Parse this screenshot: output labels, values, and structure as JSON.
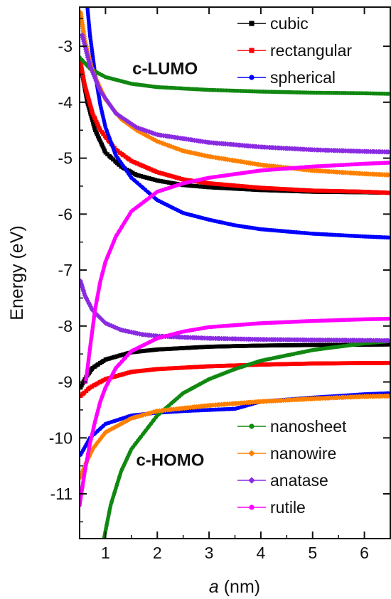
{
  "chart_data": {
    "type": "scatter",
    "xlabel_italic": "a",
    "xlabel_rest": " (nm)",
    "ylabel": "Energy (eV)",
    "xlim": [
      0.5,
      6.5
    ],
    "ylim": [
      -11.8,
      -2.3
    ],
    "xticks": [
      1,
      2,
      3,
      4,
      5,
      6
    ],
    "yticks": [
      -11,
      -10,
      -9,
      -8,
      -7,
      -6,
      -5,
      -4,
      -3
    ],
    "annotations": [
      {
        "text": "c-LUMO",
        "x": 2.15,
        "y": -3.5
      },
      {
        "text": "c-HOMO",
        "x": 2.25,
        "y": -10.5
      }
    ],
    "legend_top": [
      "cubic",
      "rectangular",
      "spherical"
    ],
    "legend_bottom": [
      "nanosheet",
      "nanowire",
      "anatase",
      "rutile"
    ],
    "series": [
      {
        "name": "cubic",
        "color": "#000000",
        "marker": "square",
        "group": "top",
        "points": [
          [
            0.55,
            -3.5
          ],
          [
            0.65,
            -4.0
          ],
          [
            0.8,
            -4.5
          ],
          [
            1.0,
            -4.9
          ],
          [
            1.3,
            -5.15
          ],
          [
            1.6,
            -5.3
          ],
          [
            2.0,
            -5.4
          ],
          [
            2.5,
            -5.48
          ],
          [
            3.0,
            -5.52
          ],
          [
            4.0,
            -5.57
          ],
          [
            5.0,
            -5.6
          ],
          [
            6.0,
            -5.61
          ],
          [
            6.5,
            -5.62
          ]
        ]
      },
      {
        "name": "cubic",
        "color": "#000000",
        "marker": "square",
        "group": "top",
        "points": [
          [
            0.52,
            -9.1
          ],
          [
            0.6,
            -8.95
          ],
          [
            0.75,
            -8.75
          ],
          [
            1.0,
            -8.6
          ],
          [
            1.5,
            -8.47
          ],
          [
            2.0,
            -8.42
          ],
          [
            3.0,
            -8.37
          ],
          [
            4.0,
            -8.35
          ],
          [
            5.0,
            -8.34
          ],
          [
            6.5,
            -8.33
          ]
        ]
      },
      {
        "name": "rectangular",
        "color": "#ff0000",
        "marker": "square",
        "group": "top",
        "points": [
          [
            0.52,
            -3.3
          ],
          [
            0.6,
            -3.7
          ],
          [
            0.75,
            -4.2
          ],
          [
            0.9,
            -4.5
          ],
          [
            1.2,
            -4.85
          ],
          [
            1.5,
            -5.05
          ],
          [
            2.0,
            -5.25
          ],
          [
            2.5,
            -5.38
          ],
          [
            3.0,
            -5.45
          ],
          [
            4.0,
            -5.53
          ],
          [
            5.0,
            -5.58
          ],
          [
            6.0,
            -5.6
          ],
          [
            6.5,
            -5.62
          ]
        ]
      },
      {
        "name": "rectangular",
        "color": "#ff0000",
        "marker": "square",
        "group": "top",
        "points": [
          [
            0.52,
            -9.25
          ],
          [
            0.7,
            -9.1
          ],
          [
            1.0,
            -8.95
          ],
          [
            1.5,
            -8.82
          ],
          [
            2.0,
            -8.77
          ],
          [
            3.0,
            -8.72
          ],
          [
            4.0,
            -8.69
          ],
          [
            5.0,
            -8.67
          ],
          [
            6.5,
            -8.66
          ]
        ]
      },
      {
        "name": "spherical",
        "color": "#0000ff",
        "marker": "circle",
        "group": "top",
        "points": [
          [
            0.65,
            -2.3
          ],
          [
            0.7,
            -2.8
          ],
          [
            0.8,
            -3.5
          ],
          [
            0.9,
            -4.05
          ],
          [
            1.0,
            -4.45
          ],
          [
            1.2,
            -4.95
          ],
          [
            1.5,
            -5.35
          ],
          [
            2.0,
            -5.75
          ],
          [
            2.5,
            -5.98
          ],
          [
            3.0,
            -6.1
          ],
          [
            3.5,
            -6.2
          ],
          [
            4.0,
            -6.27
          ],
          [
            5.0,
            -6.35
          ],
          [
            6.0,
            -6.4
          ],
          [
            6.5,
            -6.42
          ]
        ]
      },
      {
        "name": "spherical",
        "color": "#0000ff",
        "marker": "circle",
        "group": "top",
        "points": [
          [
            0.52,
            -10.3
          ],
          [
            0.7,
            -10.0
          ],
          [
            1.0,
            -9.75
          ],
          [
            1.5,
            -9.6
          ],
          [
            2.0,
            -9.55
          ],
          [
            2.5,
            -9.52
          ],
          [
            3.0,
            -9.5
          ],
          [
            3.5,
            -9.48
          ],
          [
            4.0,
            -9.35
          ],
          [
            5.0,
            -9.28
          ],
          [
            6.0,
            -9.22
          ],
          [
            6.5,
            -9.2
          ]
        ]
      },
      {
        "name": "nanosheet",
        "color": "#118811",
        "marker": "circle",
        "group": "bottom",
        "points": [
          [
            0.5,
            -3.2
          ],
          [
            0.7,
            -3.4
          ],
          [
            1.0,
            -3.55
          ],
          [
            1.5,
            -3.67
          ],
          [
            2.0,
            -3.73
          ],
          [
            3.0,
            -3.78
          ],
          [
            4.0,
            -3.81
          ],
          [
            5.0,
            -3.83
          ],
          [
            6.0,
            -3.84
          ],
          [
            6.5,
            -3.85
          ]
        ]
      },
      {
        "name": "nanosheet",
        "color": "#118811",
        "marker": "circle",
        "group": "bottom",
        "points": [
          [
            0.97,
            -11.8
          ],
          [
            1.1,
            -11.2
          ],
          [
            1.3,
            -10.6
          ],
          [
            1.5,
            -10.2
          ],
          [
            2.0,
            -9.6
          ],
          [
            2.5,
            -9.2
          ],
          [
            3.0,
            -8.95
          ],
          [
            3.5,
            -8.77
          ],
          [
            4.0,
            -8.62
          ],
          [
            5.0,
            -8.43
          ],
          [
            6.0,
            -8.31
          ],
          [
            6.5,
            -8.27
          ]
        ]
      },
      {
        "name": "nanowire",
        "color": "#ff8000",
        "marker": "diamond",
        "group": "bottom",
        "points": [
          [
            0.52,
            -2.4
          ],
          [
            0.6,
            -2.9
          ],
          [
            0.75,
            -3.45
          ],
          [
            1.0,
            -3.95
          ],
          [
            1.3,
            -4.3
          ],
          [
            1.6,
            -4.5
          ],
          [
            2.0,
            -4.7
          ],
          [
            2.5,
            -4.87
          ],
          [
            3.0,
            -4.97
          ],
          [
            4.0,
            -5.12
          ],
          [
            5.0,
            -5.22
          ],
          [
            6.0,
            -5.28
          ],
          [
            6.5,
            -5.3
          ]
        ]
      },
      {
        "name": "nanowire",
        "color": "#ff8000",
        "marker": "diamond",
        "group": "bottom",
        "points": [
          [
            0.52,
            -10.7
          ],
          [
            0.6,
            -10.5
          ],
          [
            0.75,
            -10.2
          ],
          [
            1.0,
            -9.9
          ],
          [
            1.5,
            -9.65
          ],
          [
            2.0,
            -9.52
          ],
          [
            3.0,
            -9.42
          ],
          [
            4.0,
            -9.35
          ],
          [
            5.0,
            -9.3
          ],
          [
            6.0,
            -9.26
          ],
          [
            6.5,
            -9.25
          ]
        ]
      },
      {
        "name": "anatase",
        "color": "#8a2be2",
        "marker": "diamond",
        "group": "bottom",
        "points": [
          [
            0.55,
            -2.8
          ],
          [
            0.7,
            -3.35
          ],
          [
            0.9,
            -3.8
          ],
          [
            1.2,
            -4.2
          ],
          [
            1.6,
            -4.45
          ],
          [
            2.0,
            -4.58
          ],
          [
            3.0,
            -4.72
          ],
          [
            4.0,
            -4.8
          ],
          [
            5.0,
            -4.85
          ],
          [
            6.0,
            -4.88
          ],
          [
            6.5,
            -4.89
          ]
        ]
      },
      {
        "name": "anatase",
        "color": "#8a2be2",
        "marker": "diamond",
        "group": "bottom",
        "points": [
          [
            0.52,
            -7.2
          ],
          [
            0.6,
            -7.45
          ],
          [
            0.75,
            -7.72
          ],
          [
            1.0,
            -7.95
          ],
          [
            1.3,
            -8.07
          ],
          [
            1.7,
            -8.15
          ],
          [
            2.0,
            -8.18
          ],
          [
            3.0,
            -8.22
          ],
          [
            4.0,
            -8.24
          ],
          [
            5.0,
            -8.25
          ],
          [
            6.5,
            -8.26
          ]
        ]
      },
      {
        "name": "rutile",
        "color": "#ff00ff",
        "marker": "circle",
        "group": "bottom",
        "points": [
          [
            0.62,
            -9.0
          ],
          [
            0.7,
            -8.4
          ],
          [
            0.8,
            -7.7
          ],
          [
            0.9,
            -7.2
          ],
          [
            1.0,
            -6.85
          ],
          [
            1.2,
            -6.4
          ],
          [
            1.5,
            -5.95
          ],
          [
            2.0,
            -5.6
          ],
          [
            2.5,
            -5.45
          ],
          [
            3.0,
            -5.35
          ],
          [
            4.0,
            -5.22
          ],
          [
            5.0,
            -5.15
          ],
          [
            6.0,
            -5.1
          ],
          [
            6.5,
            -5.08
          ]
        ]
      },
      {
        "name": "rutile",
        "color": "#ff00ff",
        "marker": "circle",
        "group": "bottom",
        "points": [
          [
            0.5,
            -11.2
          ],
          [
            0.55,
            -10.9
          ],
          [
            0.6,
            -10.6
          ],
          [
            0.7,
            -10.1
          ],
          [
            0.8,
            -9.7
          ],
          [
            0.9,
            -9.35
          ],
          [
            1.0,
            -9.1
          ],
          [
            1.2,
            -8.75
          ],
          [
            1.5,
            -8.45
          ],
          [
            2.0,
            -8.22
          ],
          [
            2.5,
            -8.1
          ],
          [
            3.0,
            -8.02
          ],
          [
            4.0,
            -7.95
          ],
          [
            5.0,
            -7.91
          ],
          [
            6.0,
            -7.88
          ],
          [
            6.5,
            -7.87
          ]
        ]
      }
    ]
  }
}
